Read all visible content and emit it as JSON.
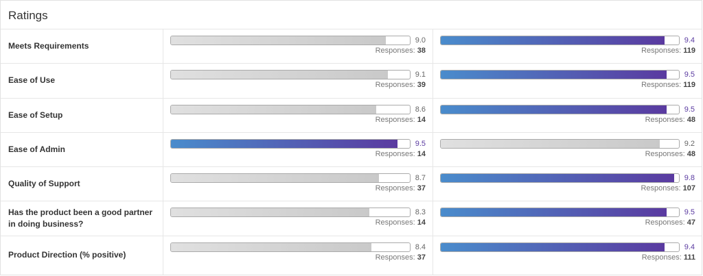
{
  "title": "Ratings",
  "responses_label": "Responses:",
  "colors": {
    "highlight_start": "#4a8ccc",
    "highlight_end": "#5a3aa0",
    "neutral": "#d0d0d0"
  },
  "scale_max": 10,
  "rows": [
    {
      "label": "Meets Requirements",
      "left": {
        "score": "9.0",
        "responses": "38",
        "best": false
      },
      "right": {
        "score": "9.4",
        "responses": "119",
        "best": true
      }
    },
    {
      "label": "Ease of Use",
      "left": {
        "score": "9.1",
        "responses": "39",
        "best": false
      },
      "right": {
        "score": "9.5",
        "responses": "119",
        "best": true
      }
    },
    {
      "label": "Ease of Setup",
      "left": {
        "score": "8.6",
        "responses": "14",
        "best": false
      },
      "right": {
        "score": "9.5",
        "responses": "48",
        "best": true
      }
    },
    {
      "label": "Ease of Admin",
      "left": {
        "score": "9.5",
        "responses": "14",
        "best": true
      },
      "right": {
        "score": "9.2",
        "responses": "48",
        "best": false
      }
    },
    {
      "label": "Quality of Support",
      "left": {
        "score": "8.7",
        "responses": "37",
        "best": false
      },
      "right": {
        "score": "9.8",
        "responses": "107",
        "best": true
      }
    },
    {
      "label": "Has the product been a good partner in doing business?",
      "left": {
        "score": "8.3",
        "responses": "14",
        "best": false
      },
      "right": {
        "score": "9.5",
        "responses": "47",
        "best": true
      }
    },
    {
      "label": "Product Direction (% positive)",
      "left": {
        "score": "8.4",
        "responses": "37",
        "best": false
      },
      "right": {
        "score": "9.4",
        "responses": "111",
        "best": true
      }
    }
  ]
}
